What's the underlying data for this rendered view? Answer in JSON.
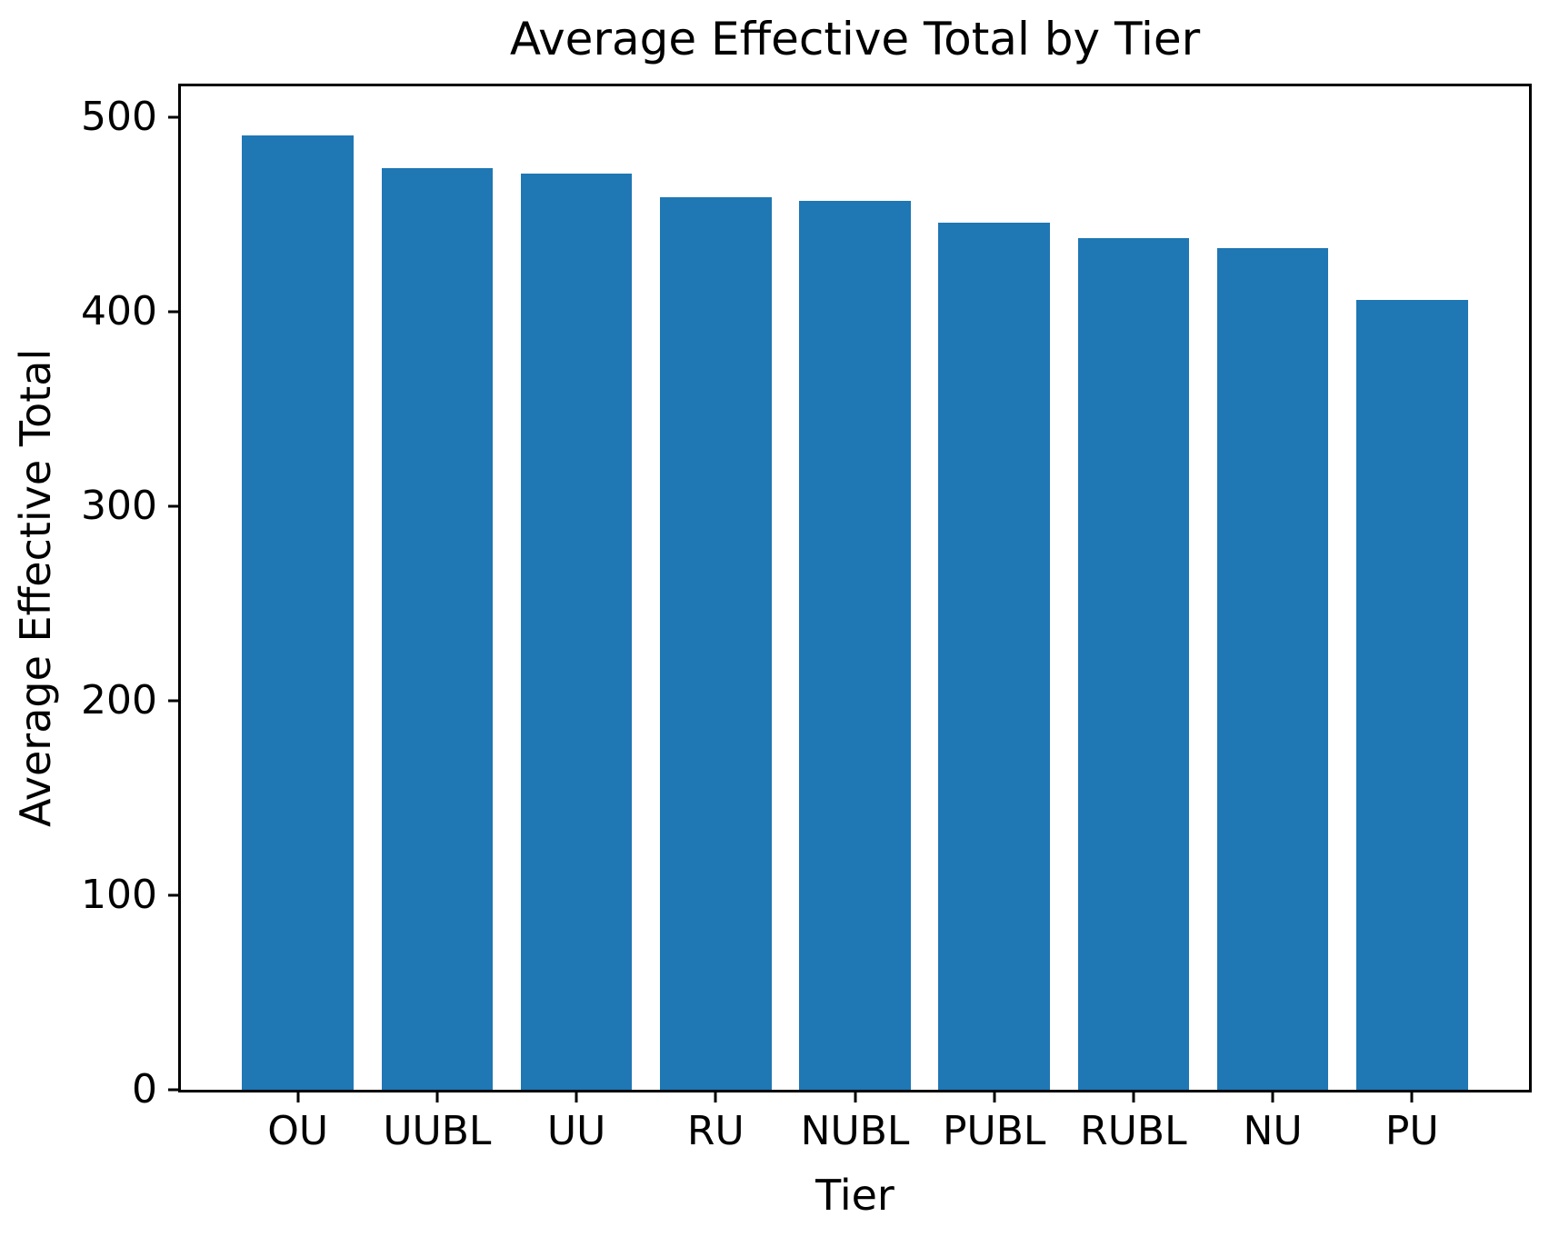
{
  "figure": {
    "background": "#ffffff",
    "text_color": "#000000"
  },
  "chart_data": {
    "type": "bar",
    "title": "Average Effective Total by Tier",
    "xlabel": "Tier",
    "ylabel": "Average Effective Total",
    "categories": [
      "OU",
      "UUBL",
      "UU",
      "RU",
      "NUBL",
      "PUBL",
      "RUBL",
      "NU",
      "PU"
    ],
    "values": [
      491,
      474,
      471,
      459,
      457,
      446,
      438,
      433,
      406
    ],
    "ylim": [
      0,
      516
    ],
    "yticks": [
      0,
      100,
      200,
      300,
      400,
      500
    ],
    "bar_color": "#1f77b4",
    "grid": false,
    "legend_position": "none"
  }
}
